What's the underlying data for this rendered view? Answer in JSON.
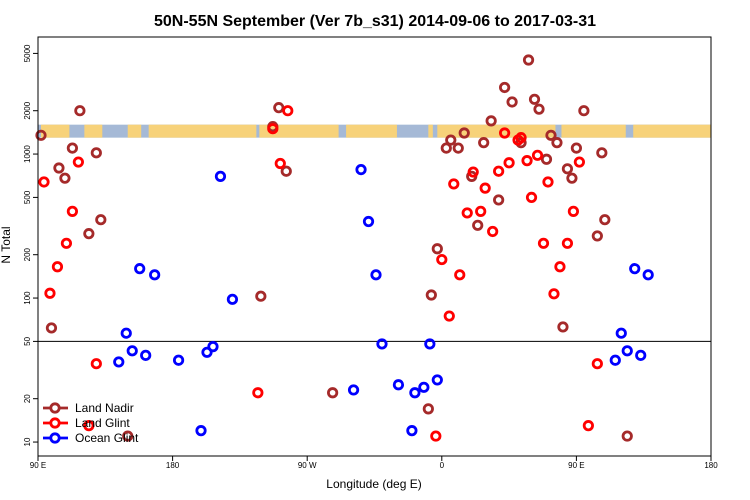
{
  "chart_data": {
    "type": "scatter",
    "title": "50N-55N September (Ver 7b_s31)   2014-09-06 to 2017-03-31",
    "xlabel": "Longitude (deg E)",
    "ylabel": "N Total",
    "y_scale": "log",
    "xlim": [
      90,
      540
    ],
    "ylim": [
      8,
      6500
    ],
    "x_ticks": [
      {
        "value": 90,
        "label": "90 E"
      },
      {
        "value": 180,
        "label": "180"
      },
      {
        "value": 270,
        "label": "90 W"
      },
      {
        "value": 360,
        "label": "0"
      },
      {
        "value": 450,
        "label": "90 E"
      },
      {
        "value": 540,
        "label": "180"
      }
    ],
    "y_ticks": [
      {
        "value": 10,
        "label": "10"
      },
      {
        "value": 20,
        "label": "20"
      },
      {
        "value": 50,
        "label": "50"
      },
      {
        "value": 100,
        "label": "100"
      },
      {
        "value": 200,
        "label": "200"
      },
      {
        "value": 500,
        "label": "500"
      },
      {
        "value": 1000,
        "label": "1000"
      },
      {
        "value": 2000,
        "label": "2000"
      },
      {
        "value": 5000,
        "label": "5000"
      }
    ],
    "reference_line_y": 50,
    "land_band": {
      "y_low": 1300,
      "y_high": 1600,
      "ocean_color": "#a5b9d6",
      "land_color": "#f7d27a"
    },
    "legend_position": "bottom-left",
    "series": [
      {
        "name": "Land Nadir",
        "color": "#a52a2a",
        "points": [
          [
            92,
            1350
          ],
          [
            99,
            62
          ],
          [
            104,
            800
          ],
          [
            108,
            680
          ],
          [
            113,
            1100
          ],
          [
            118,
            2000
          ],
          [
            124,
            280
          ],
          [
            129,
            1020
          ],
          [
            132,
            350
          ],
          [
            150,
            11
          ],
          [
            239,
            103
          ],
          [
            247,
            1550
          ],
          [
            251,
            2100
          ],
          [
            256,
            760
          ],
          [
            287,
            22
          ],
          [
            351,
            17
          ],
          [
            353,
            105
          ],
          [
            357,
            220
          ],
          [
            363,
            1100
          ],
          [
            366,
            1250
          ],
          [
            371,
            1100
          ],
          [
            375,
            1400
          ],
          [
            380,
            700
          ],
          [
            384,
            320
          ],
          [
            388,
            1200
          ],
          [
            393,
            1700
          ],
          [
            398,
            480
          ],
          [
            402,
            2900
          ],
          [
            407,
            2300
          ],
          [
            413,
            1200
          ],
          [
            418,
            4500
          ],
          [
            422,
            2400
          ],
          [
            425,
            2050
          ],
          [
            430,
            920
          ],
          [
            433,
            1350
          ],
          [
            437,
            1200
          ],
          [
            441,
            63
          ],
          [
            444,
            790
          ],
          [
            447,
            680
          ],
          [
            450,
            1100
          ],
          [
            455,
            2000
          ],
          [
            464,
            270
          ],
          [
            467,
            1020
          ],
          [
            469,
            350
          ],
          [
            484,
            11
          ]
        ]
      },
      {
        "name": "Land Glint",
        "color": "#ff0000",
        "points": [
          [
            94,
            640
          ],
          [
            98,
            108
          ],
          [
            103,
            165
          ],
          [
            109,
            240
          ],
          [
            113,
            400
          ],
          [
            117,
            880
          ],
          [
            124,
            13
          ],
          [
            129,
            35
          ],
          [
            237,
            22
          ],
          [
            247,
            1500
          ],
          [
            252,
            860
          ],
          [
            257,
            2000
          ],
          [
            356,
            11
          ],
          [
            360,
            185
          ],
          [
            365,
            75
          ],
          [
            368,
            620
          ],
          [
            372,
            145
          ],
          [
            377,
            390
          ],
          [
            381,
            750
          ],
          [
            386,
            400
          ],
          [
            389,
            580
          ],
          [
            394,
            290
          ],
          [
            398,
            760
          ],
          [
            402,
            1400
          ],
          [
            405,
            870
          ],
          [
            411,
            1250
          ],
          [
            413,
            1300
          ],
          [
            417,
            900
          ],
          [
            420,
            500
          ],
          [
            424,
            980
          ],
          [
            428,
            240
          ],
          [
            431,
            640
          ],
          [
            435,
            107
          ],
          [
            439,
            165
          ],
          [
            444,
            240
          ],
          [
            448,
            400
          ],
          [
            452,
            880
          ],
          [
            458,
            13
          ],
          [
            464,
            35
          ]
        ]
      },
      {
        "name": "Ocean Glint",
        "color": "#0000ff",
        "points": [
          [
            144,
            36
          ],
          [
            149,
            57
          ],
          [
            153,
            43
          ],
          [
            158,
            160
          ],
          [
            162,
            40
          ],
          [
            168,
            145
          ],
          [
            184,
            37
          ],
          [
            199,
            12
          ],
          [
            203,
            42
          ],
          [
            207,
            46
          ],
          [
            212,
            700
          ],
          [
            220,
            98
          ],
          [
            301,
            23
          ],
          [
            306,
            780
          ],
          [
            311,
            340
          ],
          [
            316,
            145
          ],
          [
            320,
            48
          ],
          [
            331,
            25
          ],
          [
            340,
            12
          ],
          [
            342,
            22
          ],
          [
            348,
            24
          ],
          [
            352,
            48
          ],
          [
            357,
            27
          ],
          [
            476,
            37
          ],
          [
            480,
            57
          ],
          [
            484,
            43
          ],
          [
            489,
            160
          ],
          [
            493,
            40
          ],
          [
            498,
            145
          ]
        ]
      }
    ]
  }
}
